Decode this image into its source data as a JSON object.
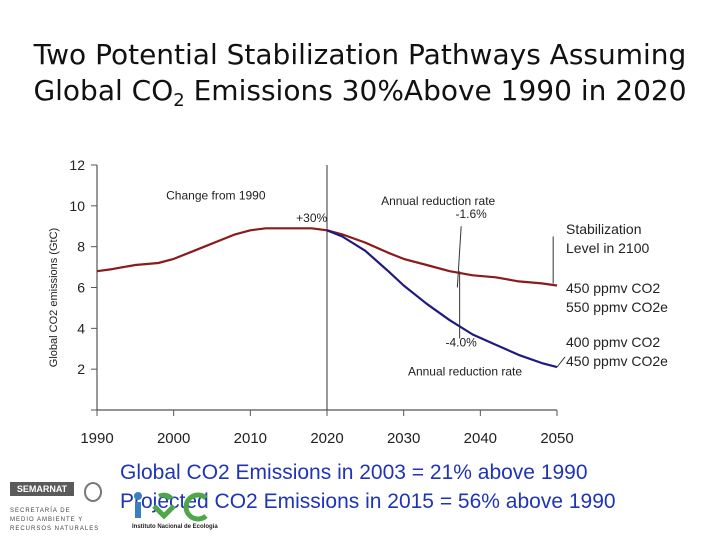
{
  "title": {
    "line1": "Two Potential Stabilization Pathways Assuming",
    "line2_prefix": "Global CO",
    "line2_sub": "2",
    "line2_suffix": " Emissions 30%Above 1990 in 2020"
  },
  "colors": {
    "series_upper": "#8b1a1a",
    "series_lower": "#1f1a80",
    "axis": "#555555",
    "footer_text": "#1f35b5"
  },
  "chart_data": {
    "type": "line",
    "ylabel": "Global CO2 emissions (GtC)",
    "xlabel": "",
    "xlim": [
      1990,
      2050
    ],
    "ylim": [
      0,
      12
    ],
    "x_ticks": [
      "1990",
      "2000",
      "2010",
      "2020",
      "2030",
      "2040",
      "2050"
    ],
    "y_ticks": [
      "2",
      "4",
      "6",
      "8",
      "10",
      "12"
    ],
    "grid": false,
    "series": [
      {
        "name": "450 ppmv CO2 550 ppmv CO2e",
        "x": [
          1990,
          1992,
          1995,
          1998,
          2000,
          2002,
          2004,
          2006,
          2008,
          2010,
          2012,
          2014,
          2016,
          2018,
          2020,
          2022,
          2025,
          2028,
          2030,
          2033,
          2036,
          2039,
          2042,
          2045,
          2048,
          2050
        ],
        "y": [
          6.8,
          6.9,
          7.1,
          7.2,
          7.4,
          7.7,
          8.0,
          8.3,
          8.6,
          8.8,
          8.9,
          8.9,
          8.9,
          8.9,
          8.8,
          8.6,
          8.2,
          7.7,
          7.4,
          7.1,
          6.8,
          6.6,
          6.5,
          6.3,
          6.2,
          6.1
        ]
      },
      {
        "name": "400 ppmv CO2 450 ppmv CO2e",
        "x": [
          2020,
          2022,
          2025,
          2028,
          2030,
          2033,
          2036,
          2039,
          2042,
          2045,
          2048,
          2050
        ],
        "y": [
          8.8,
          8.5,
          7.8,
          6.8,
          6.1,
          5.2,
          4.4,
          3.7,
          3.2,
          2.7,
          2.3,
          2.1
        ]
      }
    ],
    "annotations": [
      {
        "text": "Change from 1990",
        "x": 2005.5,
        "y": 10.3
      },
      {
        "text": "+30%",
        "x": 2018.0,
        "y": 9.2
      },
      {
        "text": "Annual reduction rate",
        "x": 2034.5,
        "y": 10.05
      },
      {
        "text": "-1.6%",
        "x": 2038.8,
        "y": 9.4
      },
      {
        "text": "-4.0%",
        "x": 2037.5,
        "y": 3.1
      },
      {
        "text": "Annual reduction rate",
        "x": 2038.0,
        "y": 1.7
      }
    ],
    "label_blocks": [
      {
        "lines": [
          "Stabilization",
          "Level in 2100"
        ]
      },
      {
        "lines": [
          "450 ppmv CO2",
          "550 ppmv CO2e"
        ]
      },
      {
        "lines": [
          "400 ppmv CO2",
          "450 ppmv CO2e"
        ]
      }
    ]
  },
  "footer": {
    "line1": "Global CO2 Emissions in 2003 = 21% above 1990",
    "line2": "Projected CO2 Emissions in 2015 = 56% above 1990"
  },
  "logos": {
    "semarnat": "SEMARNAT",
    "semarnat_sub": [
      "SECRETARÍA DE",
      "MEDIO AMBIENTE Y",
      "RECURSOS NATURALES"
    ],
    "ine": "Instituto Nacional de Ecología"
  }
}
